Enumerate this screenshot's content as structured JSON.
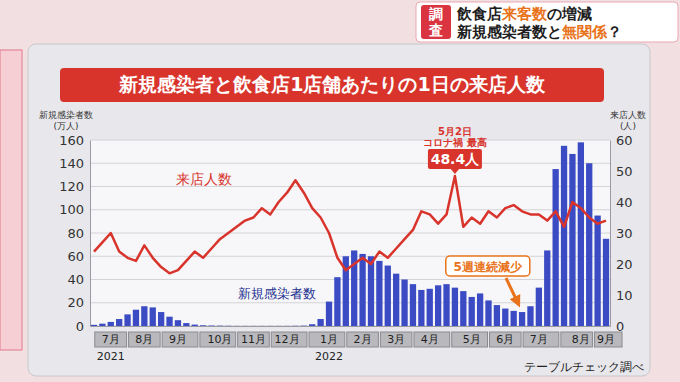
{
  "header": {
    "badge": "調査",
    "lines": [
      [
        "飲食店",
        "来客数",
        "の増減"
      ],
      [
        "新規感染者数と",
        "無関係",
        "？"
      ]
    ]
  },
  "chart_data": {
    "type": "bar",
    "title": "新規感染者と飲食店1店舗あたりの1日の来店人数",
    "ylabel": "新規感染者数\n(万人)",
    "y2label": "来店人数\n(人)",
    "categories": [
      null,
      null,
      "7月",
      null,
      null,
      null,
      "8月",
      null,
      null,
      null,
      "9月",
      null,
      null,
      null,
      null,
      "10月",
      null,
      null,
      null,
      "11月",
      null,
      null,
      null,
      "12月",
      null,
      null,
      null,
      null,
      "1月",
      null,
      null,
      null,
      "2月",
      null,
      null,
      null,
      "3月",
      null,
      null,
      null,
      "4月",
      null,
      null,
      null,
      null,
      "5月",
      null,
      null,
      null,
      "6月",
      null,
      null,
      null,
      "7月",
      null,
      null,
      null,
      null,
      "8月",
      null,
      null,
      "9月"
    ],
    "x_groups": [
      {
        "label": "2021",
        "start": 0
      },
      {
        "label": "2022",
        "start": 26
      }
    ],
    "series": [
      {
        "name": "新規感染者数",
        "type": "bar",
        "color": "#3b4bc4",
        "values": [
          1,
          2,
          3.5,
          6,
          10,
          14,
          17,
          16,
          12,
          8,
          5,
          2.5,
          1.2,
          0.6,
          0.4,
          0.3,
          0.2,
          0.1,
          0.1,
          0.1,
          0.1,
          0.1,
          0.1,
          0.1,
          0.2,
          0.3,
          1.5,
          6,
          21,
          42,
          60,
          65,
          62,
          60,
          56,
          52,
          45,
          40,
          36,
          31,
          32,
          35,
          36,
          33,
          30,
          25,
          28,
          22,
          18,
          15,
          13,
          12,
          17,
          33,
          65,
          135,
          155,
          148,
          158,
          140,
          95,
          75
        ]
      },
      {
        "name": "来店人数",
        "type": "line",
        "color": "#d8342c",
        "axis": "y2",
        "values": [
          24,
          27,
          30,
          24,
          22,
          21,
          26,
          22,
          19,
          17,
          18,
          21,
          24,
          22,
          25,
          28,
          30,
          32,
          34,
          35,
          38,
          36,
          40,
          43,
          47,
          43,
          38,
          35,
          30,
          22,
          18,
          20,
          22,
          20,
          24,
          22,
          25,
          28,
          31,
          37,
          36,
          33,
          36,
          48.4,
          32,
          35,
          33,
          37,
          35,
          38,
          39,
          37,
          36,
          36,
          34,
          37,
          32,
          40,
          38,
          35,
          33,
          34
        ]
      }
    ],
    "ylim": [
      0,
      160
    ],
    "yticks": [
      0,
      20,
      40,
      60,
      80,
      100,
      120,
      140,
      160
    ],
    "y2lim": [
      0,
      60
    ],
    "y2ticks": [
      0,
      10,
      20,
      30,
      40,
      50,
      60
    ],
    "grid": true,
    "annotations": [
      {
        "lines": [
          "5月2日",
          "コロナ禍 最高"
        ],
        "value": 48.4,
        "label": "48.4人"
      },
      {
        "text": "5週連続減少"
      }
    ],
    "source": "テーブルチェック調べ"
  }
}
